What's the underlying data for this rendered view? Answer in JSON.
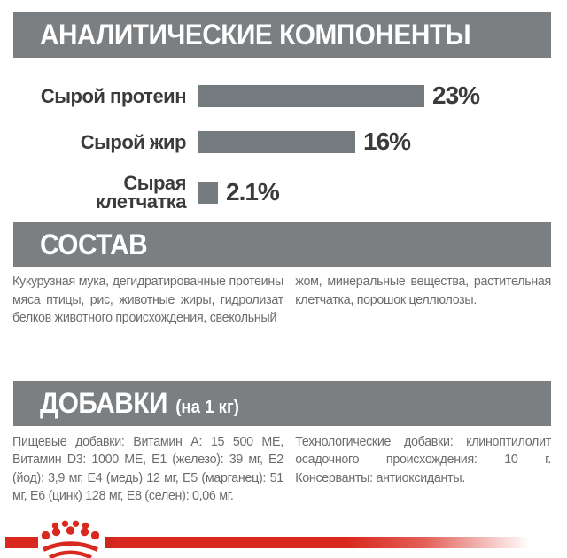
{
  "analytical": {
    "title": "АНАЛИТИЧЕСКИЕ КОМПОНЕНТЫ"
  },
  "chart_data": {
    "type": "bar",
    "orientation": "horizontal",
    "title": "АНАЛИТИЧЕСКИЕ КОМПОНЕНТЫ",
    "categories": [
      "Сырой протеин",
      "Сырой жир",
      "Сырая\nклетчатка"
    ],
    "values": [
      23,
      16,
      2.1
    ],
    "value_labels": [
      "23%",
      "16%",
      "2.1%"
    ],
    "unit": "%",
    "xlim": [
      0,
      23
    ],
    "grid": false,
    "legend": false,
    "bar_color": "#757c80",
    "label_color": "#3a3b3d"
  },
  "composition": {
    "title": "СОСТАВ",
    "column_left": "Кукурузная мука, дегидратированные протеины мяса птицы, рис, животные жиры, гидролизат белков животного происхождения, свекольный",
    "column_right": "жом, минеральные вещества, растительная клетчатка, порошок целлюлозы."
  },
  "additives": {
    "title": "ДОБАВКИ",
    "title_note": "(на 1 кг)",
    "column_left": "Пищевые добавки: Витамин A: 15 500 ME, Витамин D3: 1000 ME, E1 (железо): 39 мг, E2 (йод): 3,9 мг, E4 (медь) 12 мг, E5 (марганец): 51 мг, E6 (цинк) 128 мг, E8 (селен): 0,06 мг.",
    "column_right": "Технологические добавки: клиноптилолит осадочного происхождения: 10 г. Консерванты: антиоксиданты."
  },
  "footer": {
    "logo": "royal-canin-crown"
  },
  "colors": {
    "header_bg": "#7b7f82",
    "bar_gray": "#757c80",
    "dark_text": "#3a3b3d",
    "body_text": "#6a6c6f",
    "accent_red": "#d9291e"
  }
}
